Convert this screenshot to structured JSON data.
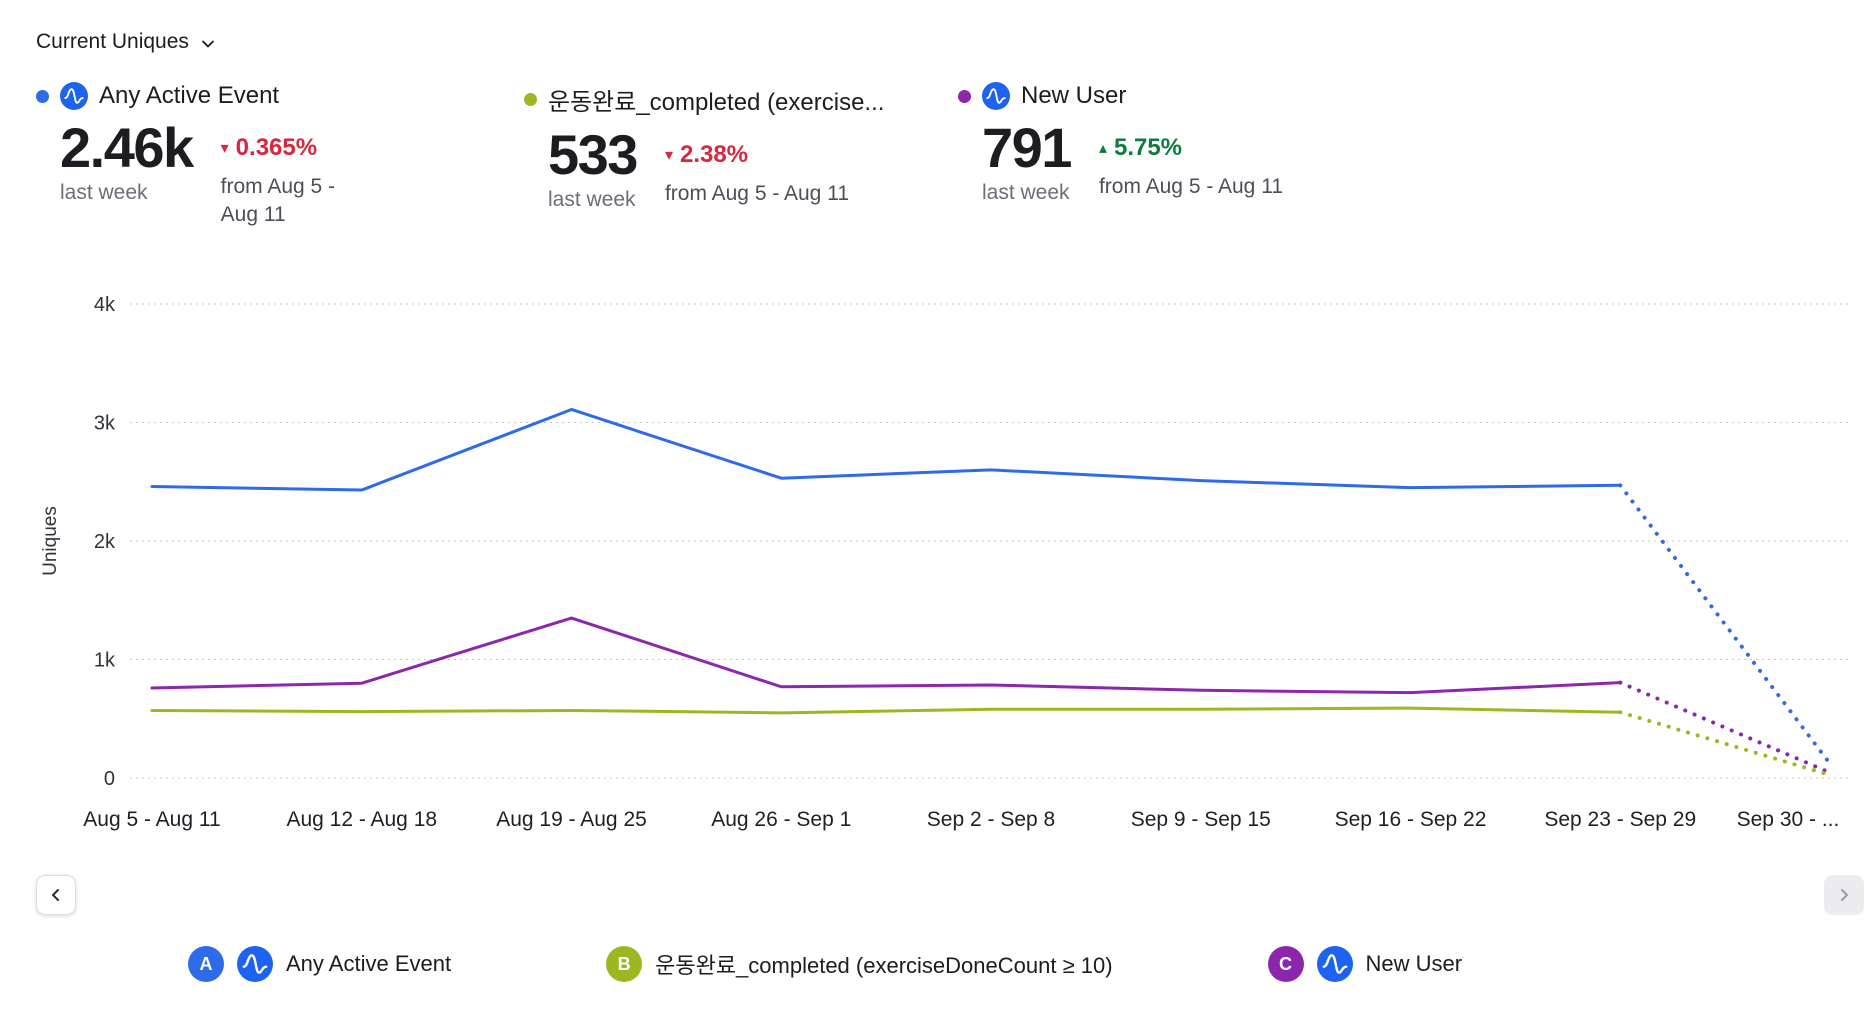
{
  "theme": {
    "accent_blue": "#2f6ae8",
    "olive_green": "#9cb821",
    "purple": "#8c26ad",
    "negative_red": "#d7263d",
    "positive_green": "#0e7c3f",
    "amplitude_logo_blue": "#1e63f0"
  },
  "header": {
    "title": "Current Uniques"
  },
  "series": [
    {
      "name": "Any Active Event",
      "color": "#2f6ae8",
      "value": "2.46k",
      "period": "last week",
      "change_icon": "▾",
      "change": "0.365%",
      "change_color": "#d7263d",
      "from": "from Aug 5 - Aug 11"
    },
    {
      "name": "운동완료_completed (exercise...",
      "color": "#9cb821",
      "value": "533",
      "period": "last week",
      "change_icon": "▾",
      "change": "2.38%",
      "change_color": "#d7263d",
      "from": "from Aug 5 - Aug 11"
    },
    {
      "name": "New User",
      "color": "#8c26ad",
      "value": "791",
      "period": "last week",
      "change_icon": "▴",
      "change": "5.75%",
      "change_color": "#0e7c3f",
      "from": "from Aug 5 - Aug 11"
    }
  ],
  "chart_data": {
    "type": "line",
    "title": "Current Uniques",
    "ylabel": "Uniques",
    "ylim": [
      0,
      4000
    ],
    "yticks": [
      "0",
      "1k",
      "2k",
      "3k",
      "4k"
    ],
    "grid": "dotted-horizontal",
    "legend_position": "bottom",
    "categories": [
      "Aug 5 - Aug 11",
      "Aug 12 - Aug 18",
      "Aug 19 - Aug 25",
      "Aug 26 - Sep 1",
      "Sep 2 - Sep 8",
      "Sep 9 - Sep 15",
      "Sep 16 - Sep 22",
      "Sep 23 - Sep 29",
      "Sep 30 - ..."
    ],
    "dotted_from_index": 7,
    "series": [
      {
        "name": "Any Active Event",
        "color": "#2f6ae8",
        "values": [
          2460,
          2430,
          3110,
          2530,
          2600,
          2510,
          2450,
          2470,
          120
        ]
      },
      {
        "name": "운동완료_completed (exerciseDoneCount ≥ 10)",
        "color": "#9cb821",
        "values": [
          570,
          560,
          570,
          550,
          580,
          580,
          590,
          555,
          25
        ]
      },
      {
        "name": "New User",
        "color": "#8c26ad",
        "values": [
          760,
          800,
          1350,
          770,
          785,
          740,
          720,
          805,
          45
        ]
      }
    ]
  },
  "nav": {
    "prev_icon": "chevron-left",
    "next_icon": "chevron-right"
  },
  "legend": [
    {
      "badge": "A",
      "color": "#2f6ae8",
      "label": "Any Active Event"
    },
    {
      "badge": "B",
      "color": "#9cb821",
      "label": "운동완료_completed (exerciseDoneCount ≥ 10)"
    },
    {
      "badge": "C",
      "color": "#8c26ad",
      "label": "New User"
    }
  ]
}
